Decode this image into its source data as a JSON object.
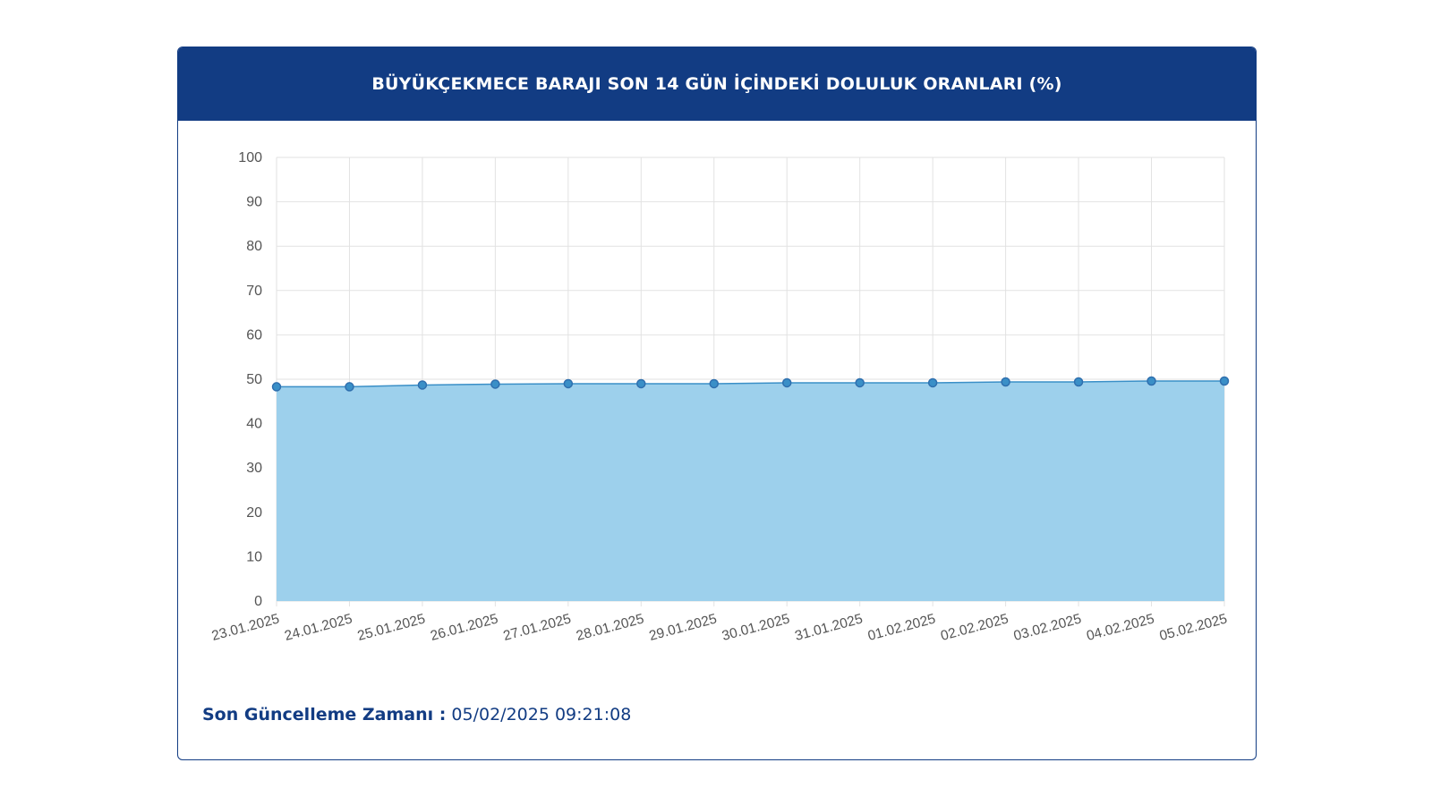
{
  "header": {
    "title": "BÜYÜKÇEKMECE BARAJI SON 14 GÜN İÇİNDEKİ DOLULUK ORANLARI (%)"
  },
  "footer": {
    "update_label": "Son Güncelleme Zamanı :",
    "update_value": "05/02/2025 09:21:08"
  },
  "colors": {
    "brand": "#123c83",
    "area_fill": "#9dd0ec",
    "line": "#3a8fc7",
    "point": "#2f6fae"
  },
  "chart_data": {
    "type": "area",
    "title": "BÜYÜKÇEKMECE BARAJI SON 14 GÜN İÇİNDEKİ DOLULUK ORANLARI (%)",
    "xlabel": "",
    "ylabel": "",
    "ylim": [
      0,
      100
    ],
    "yticks": [
      0,
      10,
      20,
      30,
      40,
      50,
      60,
      70,
      80,
      90,
      100
    ],
    "grid": true,
    "legend": "none",
    "categories": [
      "23.01.2025",
      "24.01.2025",
      "25.01.2025",
      "26.01.2025",
      "27.01.2025",
      "28.01.2025",
      "29.01.2025",
      "30.01.2025",
      "31.01.2025",
      "01.02.2025",
      "02.02.2025",
      "03.02.2025",
      "04.02.2025",
      "05.02.2025"
    ],
    "series": [
      {
        "values": [
          48.3,
          48.3,
          48.7,
          48.9,
          49.0,
          49.0,
          49.0,
          49.2,
          49.2,
          49.2,
          49.4,
          49.4,
          49.6,
          49.6
        ]
      }
    ]
  }
}
